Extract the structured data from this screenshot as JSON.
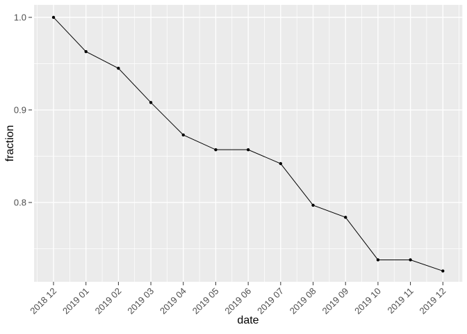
{
  "chart_data": {
    "type": "line",
    "title": "",
    "xlabel": "date",
    "ylabel": "fraction",
    "categories": [
      "2018 12",
      "2019 01",
      "2019 02",
      "2019 03",
      "2019 04",
      "2019 05",
      "2019 06",
      "2019 07",
      "2019 08",
      "2019 09",
      "2019 10",
      "2019 11",
      "2019 12"
    ],
    "series": [
      {
        "name": "fraction",
        "values": [
          1.0,
          0.963,
          0.945,
          0.908,
          0.873,
          0.857,
          0.857,
          0.842,
          0.797,
          0.784,
          0.738,
          0.738,
          0.726
        ]
      }
    ],
    "yticks_major": [
      1.0,
      0.9,
      0.8
    ],
    "ytick_labels": [
      "1.0",
      "0.9",
      "0.8"
    ],
    "yticks_minor": [
      0.95,
      0.85,
      0.75
    ],
    "ylim": [
      0.7143,
      1.0135
    ],
    "grid": "on",
    "legend": "none",
    "marker": "point",
    "style": {
      "panel_bg": "#EBEBEB",
      "grid_color": "#FFFFFF",
      "line_color": "#000000",
      "point_color": "#000000",
      "tick_text_color": "#4D4D4D",
      "axis_title_color": "#000000",
      "tick_mark_color": "#333333",
      "outer_bg": "#FFFFFF"
    }
  }
}
